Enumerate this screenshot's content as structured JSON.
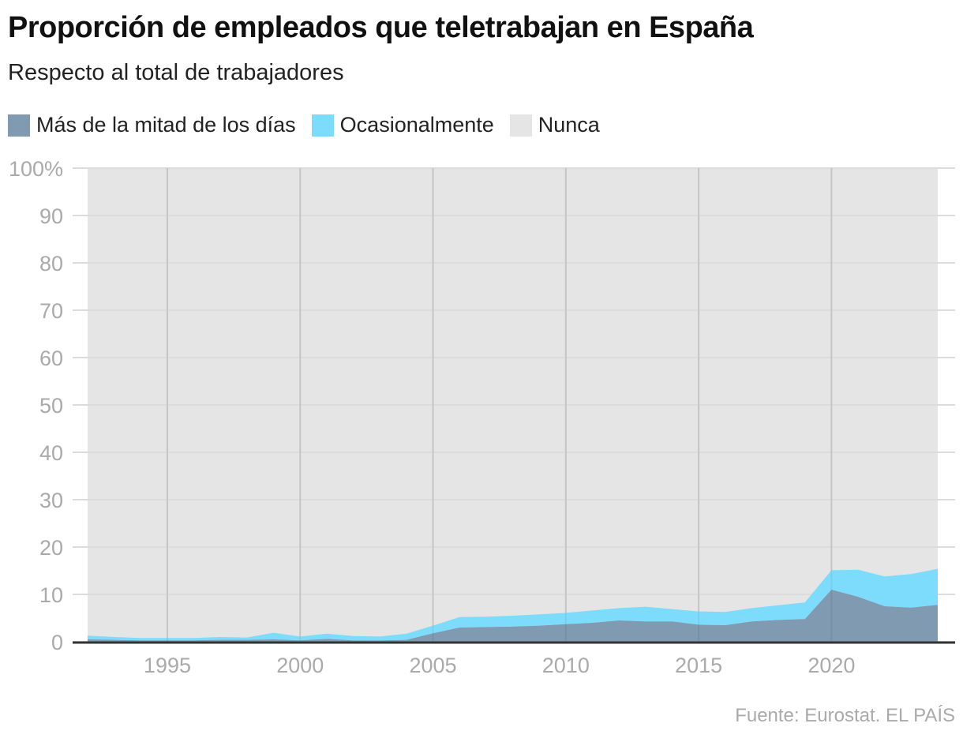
{
  "chart_data": {
    "type": "area",
    "stacked": true,
    "title": "Proporción de empleados que teletrabajan en España",
    "subtitle": "Respecto al total de trabajadores",
    "x": [
      1992,
      1993,
      1994,
      1995,
      1996,
      1997,
      1998,
      1999,
      2000,
      2001,
      2002,
      2003,
      2004,
      2005,
      2006,
      2007,
      2008,
      2009,
      2010,
      2011,
      2012,
      2013,
      2014,
      2015,
      2016,
      2017,
      2018,
      2019,
      2020,
      2021,
      2022,
      2023,
      2024
    ],
    "series": [
      {
        "name": "Más de la mitad de los días",
        "color": "#7f9ab1",
        "values": [
          0.5,
          0.4,
          0.3,
          0.3,
          0.3,
          0.4,
          0.4,
          0.5,
          0.3,
          0.6,
          0.3,
          0.3,
          0.4,
          1.8,
          3.0,
          3.1,
          3.2,
          3.4,
          3.7,
          4.0,
          4.5,
          4.3,
          4.3,
          3.6,
          3.5,
          4.3,
          4.6,
          4.8,
          11.0,
          9.5,
          7.5,
          7.2,
          7.8
        ]
      },
      {
        "name": "Ocasionalmente",
        "color": "#7ddcfb",
        "values": [
          0.8,
          0.6,
          0.5,
          0.5,
          0.5,
          0.6,
          0.5,
          1.4,
          0.8,
          1.1,
          0.9,
          0.8,
          1.3,
          1.6,
          2.2,
          2.2,
          2.3,
          2.4,
          2.4,
          2.6,
          2.6,
          3.1,
          2.6,
          2.8,
          2.8,
          2.8,
          3.1,
          3.5,
          4.1,
          5.7,
          6.3,
          7.1,
          7.6
        ]
      },
      {
        "name": "Nunca",
        "color": "#e5e5e5",
        "values": "remainder to 100%"
      }
    ],
    "xticks": [
      "1995",
      "2000",
      "2005",
      "2010",
      "2015",
      "2020"
    ],
    "yticks": [
      "0",
      "10",
      "20",
      "30",
      "40",
      "50",
      "60",
      "70",
      "80",
      "90",
      "100%"
    ],
    "xlim": [
      1992,
      2024
    ],
    "ylim": [
      0,
      100
    ],
    "grid": true,
    "legend": "top-left"
  },
  "source": "Fuente: Eurostat. EL PAÍS"
}
